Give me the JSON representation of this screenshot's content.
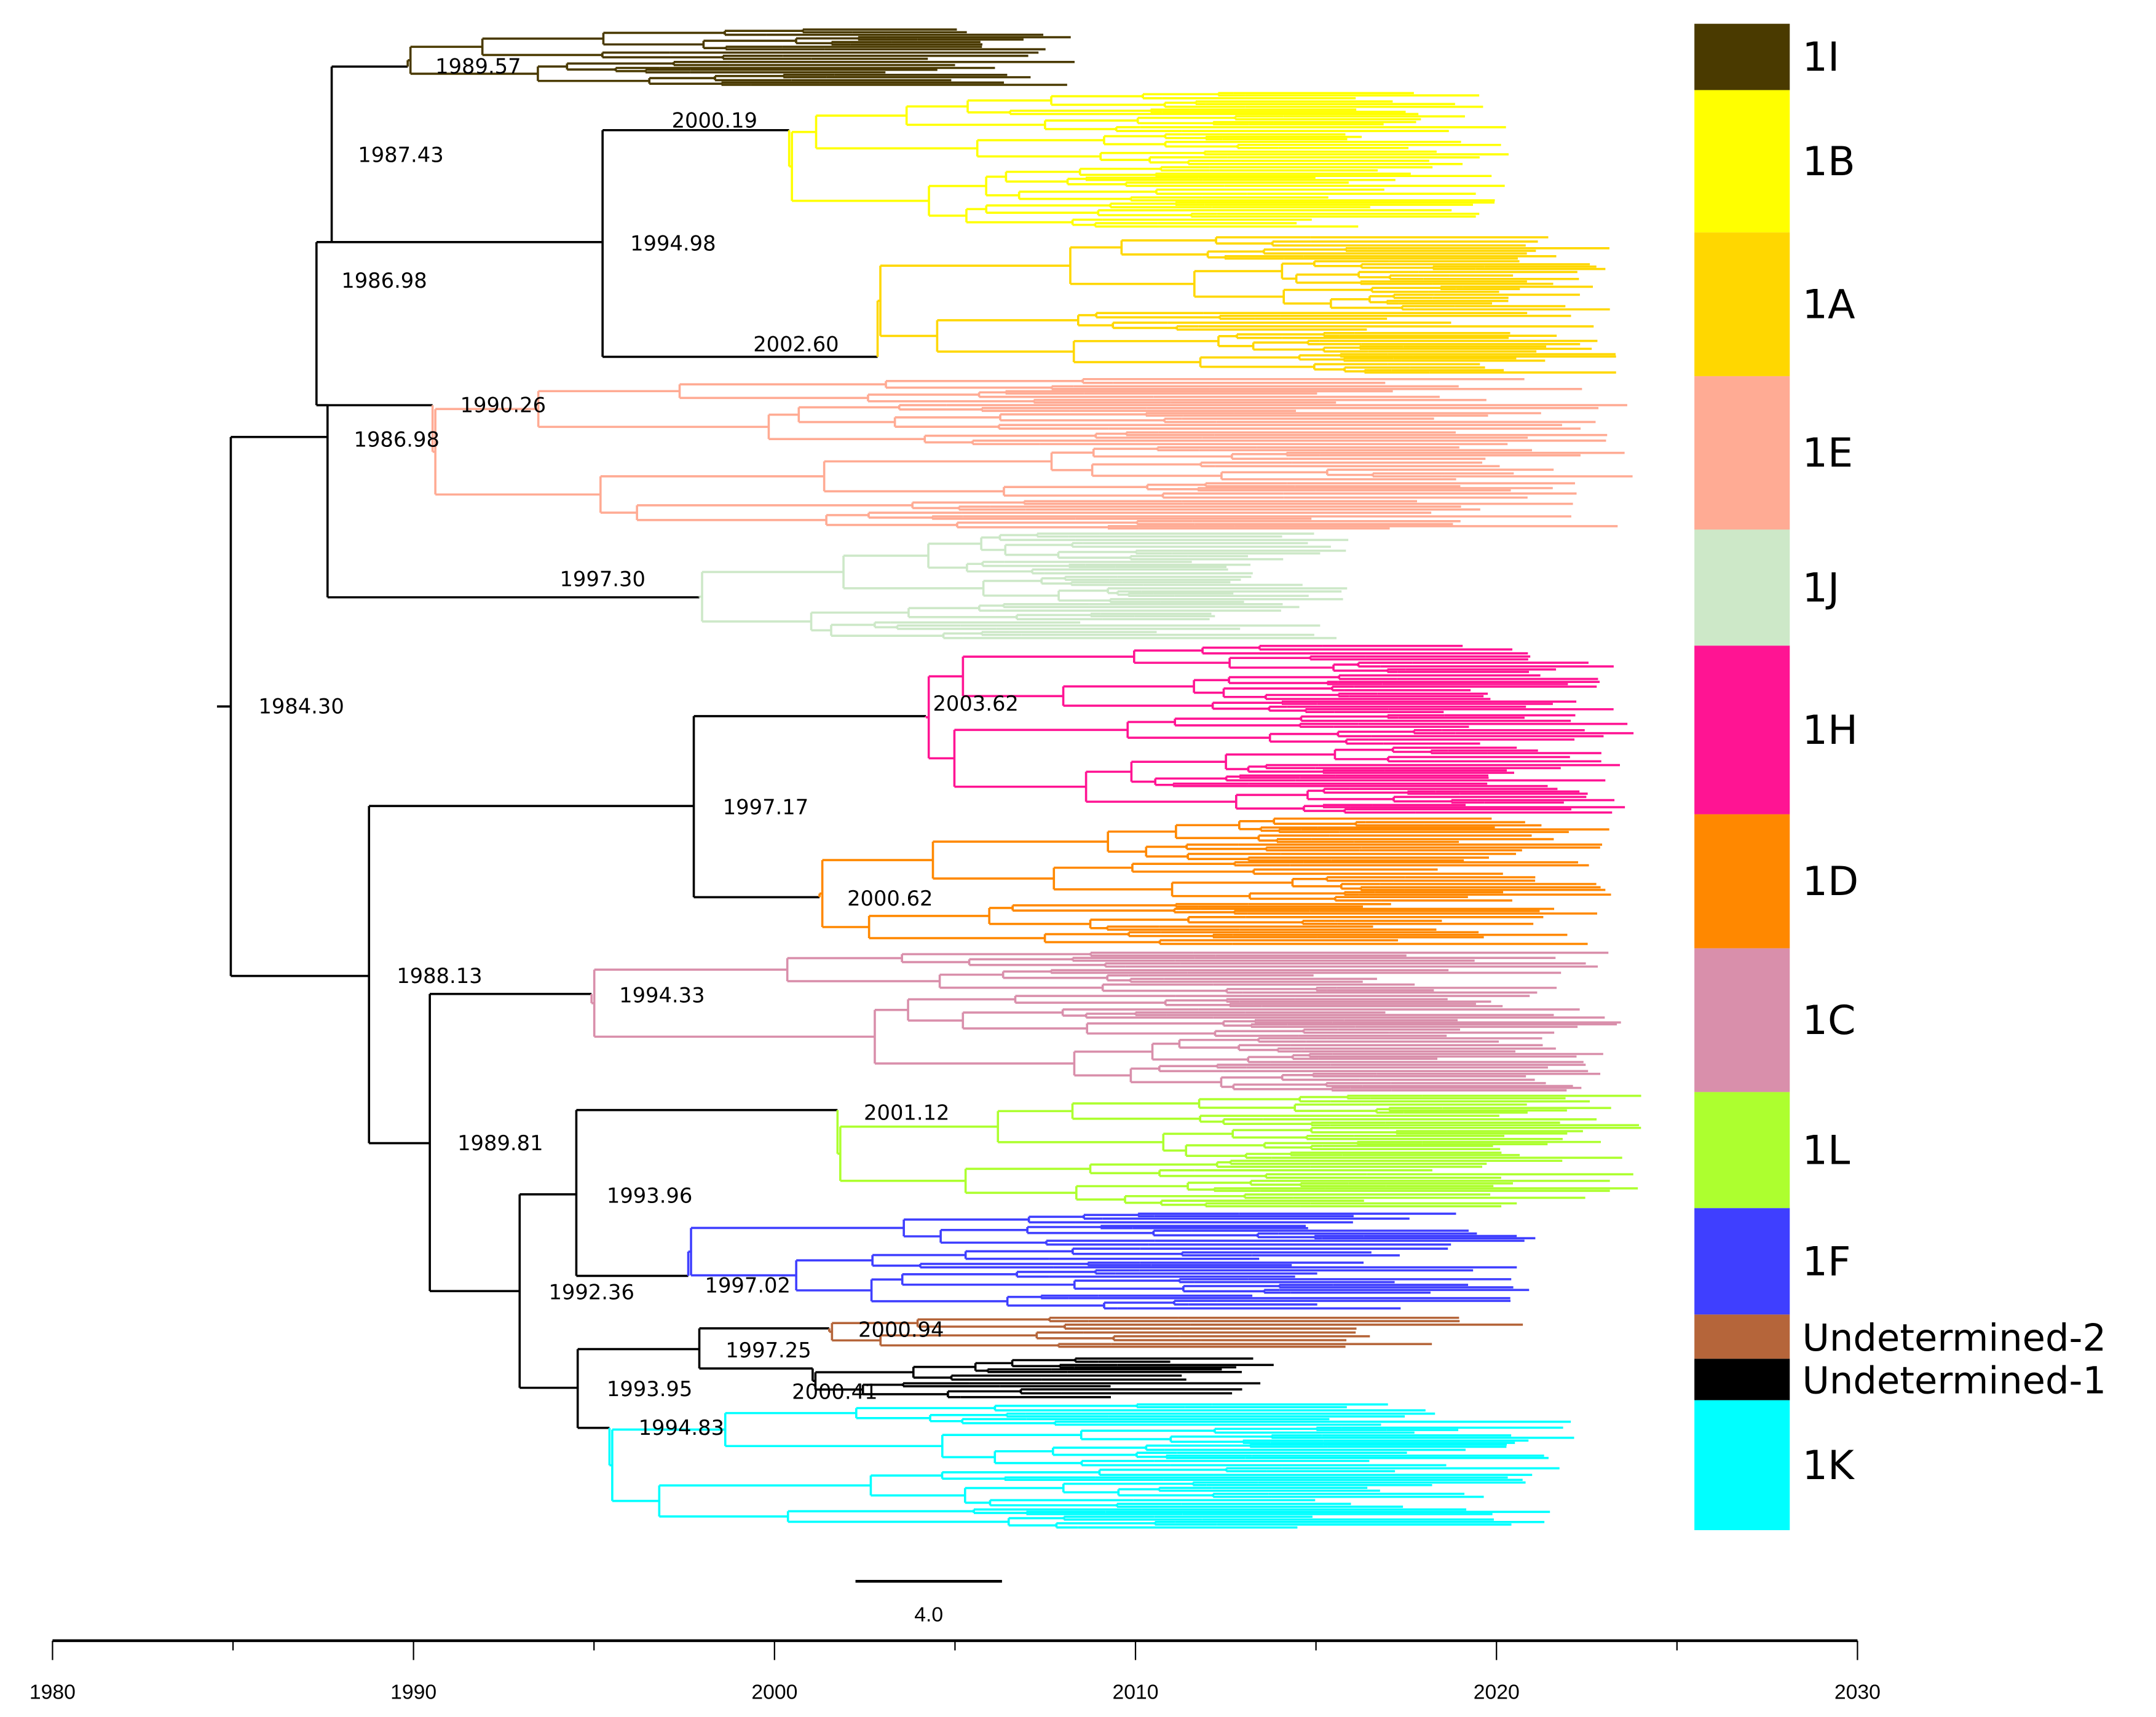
{
  "node_dates": {
    "n_1I": "1989.57",
    "n_1987": "1987.43",
    "n_1B": "2000.19",
    "n_1994_98": "1994.98",
    "n_1986a": "1986.98",
    "n_1A": "2002.60",
    "n_1E": "1990.26",
    "n_1986b": "1986.98",
    "n_1J": "1997.30",
    "root": "1984.30",
    "n_1H": "2003.62",
    "n_1997_17": "1997.17",
    "n_1D": "2000.62",
    "n_1988": "1988.13",
    "n_1C": "1994.33",
    "n_1L": "2001.12",
    "n_1989": "1989.81",
    "n_1993_96": "1993.96",
    "n_1F": "1997.02",
    "n_1992": "1992.36",
    "n_U2": "2000.94",
    "n_1997_25": "1997.25",
    "n_1993_95": "1993.95",
    "n_U1": "2000.41",
    "n_1K": "1994.83"
  },
  "legend": [
    {
      "label": "1I",
      "color": "#4a3a00"
    },
    {
      "label": "1B",
      "color": "#ffff00"
    },
    {
      "label": "1A",
      "color": "#ffd700"
    },
    {
      "label": "1E",
      "color": "#ffab94"
    },
    {
      "label": "1J",
      "color": "#cde8c8"
    },
    {
      "label": "1H",
      "color": "#ff1493"
    },
    {
      "label": "1D",
      "color": "#ff8800"
    },
    {
      "label": "1C",
      "color": "#d98fab"
    },
    {
      "label": "1L",
      "color": "#adff2f"
    },
    {
      "label": "1F",
      "color": "#3f3fff"
    },
    {
      "label": "Undetermined-2",
      "color": "#b5653a"
    },
    {
      "label": "Undetermined-1",
      "color": "#000000"
    },
    {
      "label": "1K",
      "color": "#00ffff"
    }
  ],
  "scale_bar": {
    "label": "4.0"
  },
  "axis": {
    "ticks": [
      "1980",
      "1990",
      "2000",
      "2010",
      "2020",
      "2030"
    ]
  }
}
